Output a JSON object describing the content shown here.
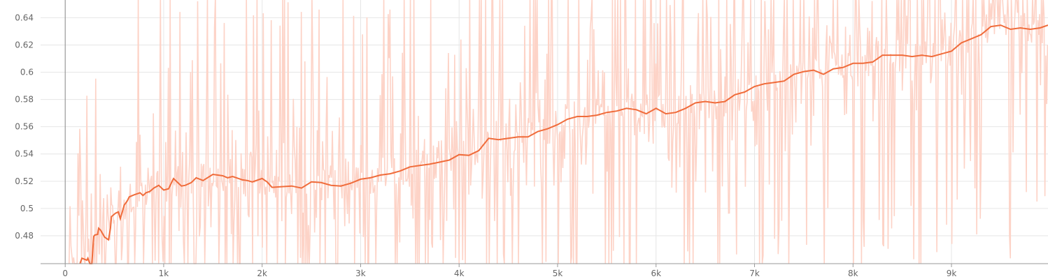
{
  "chart_data": {
    "type": "line",
    "title": "",
    "xlabel": "",
    "ylabel": "",
    "xlim": [
      -250,
      9980
    ],
    "ylim": [
      0.4595,
      0.653
    ],
    "grid": true,
    "x_ticks": [
      0,
      1000,
      2000,
      3000,
      4000,
      5000,
      6000,
      7000,
      8000,
      9000
    ],
    "x_tick_labels": [
      "0",
      "1k",
      "2k",
      "3k",
      "4k",
      "5k",
      "6k",
      "7k",
      "8k",
      "9k"
    ],
    "y_ticks": [
      0.48,
      0.5,
      0.52,
      0.54,
      0.56,
      0.58,
      0.6,
      0.62,
      0.64
    ],
    "y_tick_labels": [
      "0.48",
      "0.5",
      "0.52",
      "0.54",
      "0.56",
      "0.58",
      "0.6",
      "0.62",
      "0.64"
    ],
    "series": [
      {
        "role": "smoothed",
        "color": "#f06c3b",
        "x": [
          150,
          170,
          220,
          230,
          250,
          270,
          290,
          300,
          330,
          340,
          360,
          400,
          420,
          440,
          460,
          470,
          510,
          540,
          560,
          600,
          630,
          650,
          700,
          760,
          790,
          820,
          860,
          900,
          950,
          1000,
          1050,
          1100,
          1180,
          1220,
          1280,
          1330,
          1400,
          1500,
          1600,
          1650,
          1700,
          1800,
          1850,
          1900,
          2000,
          2050,
          2100,
          2200,
          2300,
          2400,
          2500,
          2600,
          2700,
          2800,
          2900,
          3000,
          3100,
          3200,
          3300,
          3400,
          3500,
          3600,
          3700,
          3800,
          3900,
          4000,
          4100,
          4200,
          4300,
          4400,
          4500,
          4600,
          4700,
          4800,
          4900,
          5000,
          5100,
          5200,
          5300,
          5400,
          5500,
          5600,
          5700,
          5800,
          5900,
          6000,
          6100,
          6200,
          6300,
          6400,
          6500,
          6600,
          6700,
          6800,
          6900,
          7000,
          7100,
          7200,
          7300,
          7400,
          7500,
          7600,
          7700,
          7800,
          7900,
          8000,
          8100,
          8200,
          8300,
          8400,
          8500,
          8600,
          8700,
          8800,
          8900,
          9000,
          9100,
          9200,
          9300,
          9400,
          9500,
          9600,
          9700,
          9800,
          9900,
          9980
        ],
        "values": [
          0.457,
          0.4635,
          0.462,
          0.4635,
          0.4545,
          0.4595,
          0.4795,
          0.4805,
          0.481,
          0.4855,
          0.484,
          0.479,
          0.478,
          0.477,
          0.4855,
          0.494,
          0.4965,
          0.4975,
          0.4925,
          0.5025,
          0.5055,
          0.5085,
          0.51,
          0.5115,
          0.5095,
          0.5115,
          0.5125,
          0.515,
          0.517,
          0.5135,
          0.5145,
          0.522,
          0.5165,
          0.517,
          0.519,
          0.5225,
          0.5205,
          0.525,
          0.524,
          0.5225,
          0.5235,
          0.521,
          0.5205,
          0.5195,
          0.522,
          0.5195,
          0.5155,
          0.516,
          0.5165,
          0.515,
          0.5195,
          0.519,
          0.517,
          0.5165,
          0.5185,
          0.5215,
          0.5225,
          0.5245,
          0.5255,
          0.5275,
          0.5305,
          0.5315,
          0.5325,
          0.534,
          0.5355,
          0.5395,
          0.539,
          0.5425,
          0.5515,
          0.5505,
          0.5515,
          0.5525,
          0.5525,
          0.5565,
          0.5585,
          0.5615,
          0.5655,
          0.5675,
          0.5675,
          0.5685,
          0.5705,
          0.5715,
          0.5735,
          0.5725,
          0.5695,
          0.5735,
          0.5695,
          0.5705,
          0.5735,
          0.5775,
          0.5785,
          0.5775,
          0.5785,
          0.5835,
          0.5855,
          0.5895,
          0.5915,
          0.5925,
          0.5935,
          0.5985,
          0.6005,
          0.6015,
          0.5985,
          0.6025,
          0.6035,
          0.6065,
          0.6065,
          0.6075,
          0.6125,
          0.6125,
          0.6125,
          0.6115,
          0.6125,
          0.6115,
          0.6135,
          0.6155,
          0.6215,
          0.6245,
          0.6275,
          0.6335,
          0.6345,
          0.6315,
          0.6325,
          0.6315,
          0.6325,
          0.6345
        ]
      }
    ]
  }
}
